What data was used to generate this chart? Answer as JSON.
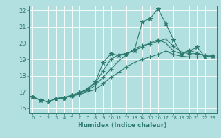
{
  "title": "",
  "xlabel": "Humidex (Indice chaleur)",
  "bg_color": "#b2dfdf",
  "grid_color": "#ffffff",
  "line_color": "#2d7a6e",
  "xlim": [
    -0.5,
    23.5
  ],
  "ylim": [
    15.7,
    22.3
  ],
  "yticks": [
    16,
    17,
    18,
    19,
    20,
    21,
    22
  ],
  "xticks": [
    0,
    1,
    2,
    3,
    4,
    5,
    6,
    7,
    8,
    9,
    10,
    11,
    12,
    13,
    14,
    15,
    16,
    17,
    18,
    19,
    20,
    21,
    22,
    23
  ],
  "series": [
    [
      16.7,
      16.5,
      16.4,
      16.6,
      16.65,
      16.75,
      16.85,
      17.0,
      17.15,
      17.5,
      17.9,
      18.2,
      18.55,
      18.8,
      19.0,
      19.15,
      19.3,
      19.5,
      19.3,
      19.2,
      19.15,
      19.15,
      19.15,
      19.2
    ],
    [
      16.7,
      16.5,
      16.4,
      16.6,
      16.65,
      16.75,
      16.9,
      17.1,
      17.4,
      17.9,
      18.4,
      18.9,
      19.3,
      19.65,
      19.85,
      19.95,
      20.1,
      20.25,
      19.8,
      19.45,
      19.35,
      19.35,
      19.25,
      19.25
    ],
    [
      16.7,
      16.5,
      16.4,
      16.6,
      16.65,
      16.8,
      16.95,
      17.15,
      17.55,
      18.3,
      19.0,
      19.3,
      19.35,
      19.55,
      19.75,
      20.0,
      20.2,
      20.0,
      19.5,
      19.35,
      19.55,
      19.4,
      19.2,
      19.2
    ],
    [
      16.7,
      16.5,
      16.4,
      16.6,
      16.65,
      16.8,
      16.95,
      17.2,
      17.6,
      18.8,
      19.35,
      19.25,
      19.35,
      19.55,
      21.3,
      21.5,
      22.1,
      21.2,
      20.2,
      19.3,
      19.5,
      19.75,
      19.15,
      19.2
    ]
  ]
}
